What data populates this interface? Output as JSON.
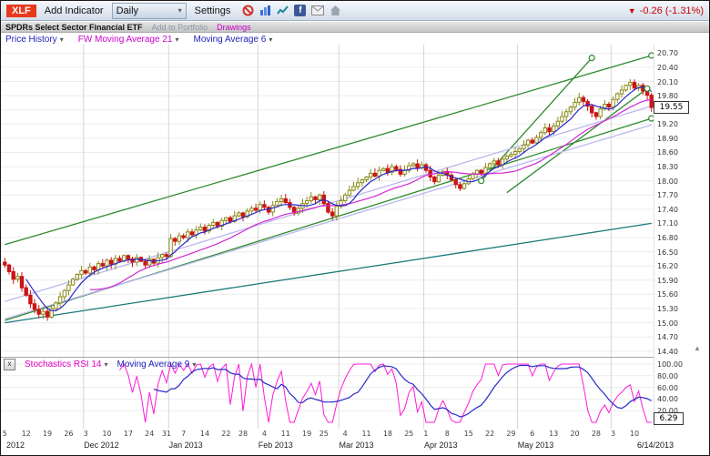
{
  "toolbar": {
    "symbol": "XLF",
    "symbol_bg": "#e8391d",
    "add_indicator": "Add Indicator",
    "timeframe": "Daily",
    "settings": "Settings",
    "icons": [
      "no-entry-icon",
      "bar-chart-icon",
      "line-chart-icon",
      "facebook-icon",
      "email-icon",
      "home-icon"
    ],
    "change": "-0.26 (-1.31%)",
    "change_color": "#cc0000"
  },
  "subheader": {
    "name": "SPDRs Select Sector Financial ETF",
    "add_to_portfolio": "Add to Portfolio",
    "drawings": "Drawings"
  },
  "price_pane": {
    "legend": [
      {
        "label": "Price History",
        "color": "#2222bb"
      },
      {
        "label": "FW Moving Average 21",
        "color": "#cc00cc"
      },
      {
        "label": "Moving Average 6",
        "color": "#2222bb"
      }
    ],
    "axis_ticks": [
      "20.70",
      "20.40",
      "20.10",
      "19.80",
      "19.50",
      "19.20",
      "18.90",
      "18.60",
      "18.30",
      "18.00",
      "17.70",
      "17.40",
      "17.10",
      "16.80",
      "16.50",
      "16.20",
      "15.90",
      "15.60",
      "15.30",
      "15.00",
      "14.70",
      "14.40"
    ],
    "last_price": "19.55"
  },
  "stoch_pane": {
    "close_label": "x",
    "legend": [
      {
        "label": "Stochastics RSI 14",
        "color": "#e400c4"
      },
      {
        "label": "Moving Average 9",
        "color": "#2222bb"
      }
    ],
    "axis_ticks": [
      "100.00",
      "80.00",
      "60.00",
      "40.00",
      "20.00"
    ],
    "last_value": "6.29"
  },
  "x_axis": {
    "weeks": [
      [
        "5",
        0
      ],
      [
        "12",
        5
      ],
      [
        "19",
        10
      ],
      [
        "26",
        15
      ],
      [
        "3",
        19
      ],
      [
        "10",
        24
      ],
      [
        "17",
        29
      ],
      [
        "24",
        34
      ],
      [
        "31",
        38
      ],
      [
        "7",
        42
      ],
      [
        "14",
        47
      ],
      [
        "22",
        52
      ],
      [
        "28",
        56
      ],
      [
        "4",
        61
      ],
      [
        "11",
        66
      ],
      [
        "19",
        71
      ],
      [
        "25",
        75
      ],
      [
        "4",
        80
      ],
      [
        "11",
        85
      ],
      [
        "18",
        90
      ],
      [
        "25",
        95
      ],
      [
        "1",
        99
      ],
      [
        "8",
        104
      ],
      [
        "15",
        109
      ],
      [
        "22",
        114
      ],
      [
        "29",
        119
      ],
      [
        "6",
        124
      ],
      [
        "13",
        129
      ],
      [
        "20",
        134
      ],
      [
        "28",
        139
      ],
      [
        "3",
        143
      ],
      [
        "10",
        148
      ]
    ],
    "months": [
      [
        "Dec 2012",
        19
      ],
      [
        "Jan 2013",
        39
      ],
      [
        "Feb 2013",
        60
      ],
      [
        "Mar 2013",
        79
      ],
      [
        "Apr 2013",
        99
      ],
      [
        "May 2013",
        121
      ]
    ],
    "month_gridlines": [
      19,
      39,
      60,
      79,
      99,
      121,
      143
    ],
    "year_label": "2012",
    "end_label": "6/14/2013"
  },
  "chart_data": {
    "type": "candlestick",
    "title": "XLF - SPDRs Select Sector Financial ETF (Daily)",
    "x_start": "2012-11-05",
    "x_end": "2013-06-14",
    "frequency": "daily-trading",
    "ylim": [
      14.28,
      20.88
    ],
    "closes": [
      16.22,
      16.08,
      15.92,
      15.98,
      15.74,
      15.58,
      15.4,
      15.28,
      15.18,
      15.24,
      15.12,
      15.3,
      15.42,
      15.55,
      15.68,
      15.8,
      15.92,
      16.02,
      16.1,
      16.05,
      16.18,
      16.12,
      16.25,
      16.2,
      16.32,
      16.24,
      16.36,
      16.3,
      16.42,
      16.35,
      16.28,
      16.38,
      16.3,
      16.22,
      16.34,
      16.26,
      16.38,
      16.44,
      16.4,
      16.78,
      16.72,
      16.84,
      16.8,
      16.92,
      16.86,
      16.96,
      17.02,
      16.94,
      17.06,
      17.12,
      17.04,
      17.16,
      17.22,
      17.14,
      17.26,
      17.32,
      17.24,
      17.36,
      17.42,
      17.38,
      17.5,
      17.44,
      17.34,
      17.48,
      17.56,
      17.62,
      17.54,
      17.44,
      17.32,
      17.42,
      17.52,
      17.58,
      17.66,
      17.6,
      17.7,
      17.52,
      17.34,
      17.26,
      17.46,
      17.58,
      17.7,
      17.8,
      17.88,
      17.96,
      18.02,
      18.08,
      18.16,
      18.1,
      18.22,
      18.26,
      18.18,
      18.3,
      18.24,
      18.14,
      18.22,
      18.32,
      18.36,
      18.28,
      18.34,
      18.22,
      18.08,
      17.98,
      18.12,
      18.2,
      18.12,
      18.02,
      17.92,
      17.84,
      17.94,
      18.04,
      18.14,
      18.22,
      18.16,
      18.28,
      18.36,
      18.42,
      18.34,
      18.46,
      18.52,
      18.56,
      18.62,
      18.68,
      18.76,
      18.86,
      18.8,
      18.92,
      19.02,
      19.12,
      19.04,
      19.16,
      19.26,
      19.36,
      19.46,
      19.56,
      19.66,
      19.76,
      19.68,
      19.58,
      19.44,
      19.36,
      19.52,
      19.62,
      19.56,
      19.72,
      19.84,
      19.92,
      20.02,
      20.08,
      19.96,
      20.02,
      19.9,
      19.81,
      19.55
    ],
    "colors": {
      "up": "#8a8a1a",
      "down": "#cc1414"
    },
    "overlays": [
      {
        "name": "FW Moving Average 21",
        "period": 21,
        "color": "#d428d4"
      },
      {
        "name": "Moving Average 6",
        "period": 6,
        "color": "#2929c8"
      }
    ],
    "lower_indicator": {
      "name": "Stochastics RSI",
      "period": 14,
      "ma_period": 9,
      "range": [
        0,
        100
      ],
      "last_value": 6.29,
      "colors": {
        "main": "#ff1ad9",
        "ma": "#2929c8"
      }
    },
    "drawings": [
      {
        "name": "upper-channel-line",
        "color": "#2e8b2e",
        "from": [
          0,
          16.65
        ],
        "to": [
          152,
          20.65
        ],
        "handles": [
          "end"
        ]
      },
      {
        "name": "lower-channel-line",
        "color": "#2e8b2e",
        "from": [
          0,
          15.05
        ],
        "to": [
          152,
          19.32
        ],
        "handles": [
          "end"
        ]
      },
      {
        "name": "steep-trendline-1",
        "color": "#2e8b2e",
        "from": [
          112,
          18.0
        ],
        "to": [
          138,
          20.6
        ],
        "handles": [
          "start",
          "end"
        ]
      },
      {
        "name": "steep-trendline-2",
        "color": "#2e8b2e",
        "from": [
          118,
          17.75
        ],
        "to": [
          151,
          19.95
        ],
        "handles": [
          "end"
        ]
      },
      {
        "name": "long-support-line",
        "color": "#1a7a7a",
        "from": [
          0,
          15.0
        ],
        "to": [
          152,
          17.1
        ],
        "handles": []
      },
      {
        "name": "lavender-trendline-1",
        "color": "#b9b9ee",
        "from": [
          0,
          15.08
        ],
        "to": [
          152,
          19.18
        ],
        "handles": []
      },
      {
        "name": "lavender-trendline-2",
        "color": "#b9b9ee",
        "from": [
          0,
          15.45
        ],
        "to": [
          152,
          19.58
        ],
        "handles": []
      }
    ]
  }
}
